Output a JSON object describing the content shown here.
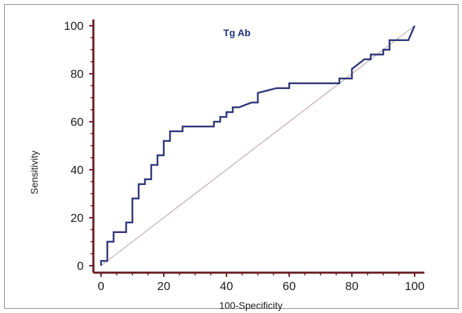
{
  "chart_data": {
    "type": "line",
    "title": "Tg Ab",
    "xlabel": "100-Specificity",
    "ylabel": "Sensitivity",
    "xlim": [
      0,
      100
    ],
    "ylim": [
      0,
      100
    ],
    "xticks": [
      "0",
      "20",
      "40",
      "60",
      "80",
      "100"
    ],
    "yticks": [
      "0",
      "20",
      "40",
      "60",
      "80",
      "100"
    ],
    "grid": false,
    "colors": {
      "roc_curve": "#2e3579",
      "reference_line": "#b59aa6",
      "axes": "#6b1a1f",
      "title": "#1f2f7a"
    },
    "series": [
      {
        "values": [
          [
            0,
            0
          ],
          [
            0,
            2
          ],
          [
            2,
            2
          ],
          [
            2,
            10
          ],
          [
            4,
            10
          ],
          [
            4,
            14
          ],
          [
            8,
            14
          ],
          [
            8,
            18
          ],
          [
            10,
            18
          ],
          [
            10,
            20
          ],
          [
            10,
            28
          ],
          [
            12,
            28
          ],
          [
            12,
            34
          ],
          [
            14,
            34
          ],
          [
            14,
            36
          ],
          [
            16,
            36
          ],
          [
            16,
            42
          ],
          [
            18,
            42
          ],
          [
            18,
            46
          ],
          [
            20,
            46
          ],
          [
            20,
            52
          ],
          [
            22,
            52
          ],
          [
            22,
            56
          ],
          [
            26,
            56
          ],
          [
            26,
            58
          ],
          [
            36,
            58
          ],
          [
            36,
            60
          ],
          [
            38,
            60
          ],
          [
            38,
            62
          ],
          [
            40,
            62
          ],
          [
            40,
            64
          ],
          [
            42,
            64
          ],
          [
            42,
            66
          ],
          [
            44,
            66
          ],
          [
            48,
            68
          ],
          [
            50,
            68
          ],
          [
            50,
            72
          ],
          [
            56,
            74
          ],
          [
            60,
            74
          ],
          [
            60,
            76
          ],
          [
            76,
            76
          ],
          [
            76,
            78
          ],
          [
            80,
            78
          ],
          [
            80,
            82
          ],
          [
            84,
            86
          ],
          [
            86,
            86
          ],
          [
            86,
            88
          ],
          [
            90,
            88
          ],
          [
            90,
            90
          ],
          [
            92,
            90
          ],
          [
            92,
            94
          ],
          [
            98,
            94
          ],
          [
            100,
            100
          ]
        ]
      }
    ],
    "reference_line": [
      [
        0,
        0
      ],
      [
        100,
        100
      ]
    ]
  }
}
